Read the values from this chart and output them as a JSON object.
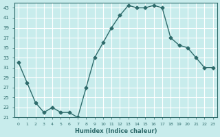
{
  "x": [
    0,
    1,
    2,
    3,
    4,
    5,
    6,
    7,
    8,
    9,
    10,
    11,
    12,
    13,
    14,
    15,
    16,
    17,
    18,
    19,
    20,
    21,
    22,
    23
  ],
  "y": [
    32,
    28,
    24,
    22,
    23,
    22,
    22,
    21,
    27,
    33,
    36,
    39,
    41.5,
    43.5,
    43,
    43,
    43.5,
    43,
    37,
    35.5,
    35,
    33,
    31,
    31
  ],
  "line_color": "#2e6b6b",
  "marker": "D",
  "marker_size": 2.5,
  "bg_color": "#c8ecec",
  "grid_color": "#ffffff",
  "xlabel": "Humidex (Indice chaleur)",
  "xlim": [
    -0.5,
    23.5
  ],
  "ylim": [
    21,
    44
  ],
  "yticks": [
    21,
    23,
    25,
    27,
    29,
    31,
    33,
    35,
    37,
    39,
    41,
    43
  ],
  "xticks": [
    0,
    1,
    2,
    3,
    4,
    5,
    6,
    7,
    8,
    9,
    10,
    11,
    12,
    13,
    14,
    15,
    16,
    17,
    18,
    19,
    20,
    21,
    22,
    23
  ]
}
